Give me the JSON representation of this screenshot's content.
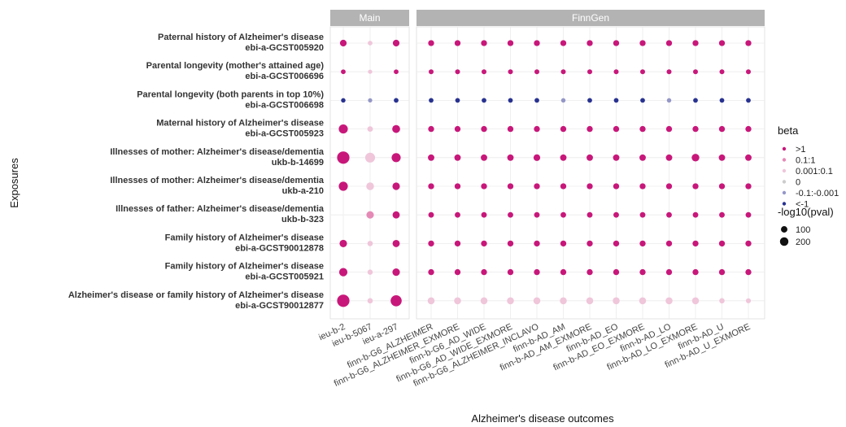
{
  "chart_data": {
    "type": "scatter",
    "title": "",
    "xlabel": "Alzheimer's disease outcomes",
    "ylabel": "Exposures",
    "panels": [
      {
        "name": "Main",
        "outcomes": [
          "ieu-b-2",
          "ieu-b-5067",
          "ieu-a-297"
        ]
      },
      {
        "name": "FinnGen",
        "outcomes": [
          "finn-b-G6_ALZHEIMER",
          "finn-b-G6_ALZHEIMER_EXMORE",
          "finn-b-G6_AD_WIDE",
          "finn-b-G6_AD_WIDE_EXMORE",
          "finn-b-G6_ALZHEIMER_INCLAVO",
          "finn-b-AD_AM",
          "finn-b-AD_AM_EXMORE",
          "finn-b-AD_EO",
          "finn-b-AD_EO_EXMORE",
          "finn-b-AD_LO",
          "finn-b-AD_LO_EXMORE",
          "finn-b-AD_U",
          "finn-b-AD_U_EXMORE"
        ]
      }
    ],
    "exposures": [
      {
        "name": "Paternal history of Alzheimer's disease",
        "id": "ebi-a-GCST005920"
      },
      {
        "name": "Parental longevity (mother's attained age)",
        "id": "ebi-a-GCST006696"
      },
      {
        "name": "Parental longevity (both parents in top 10%)",
        "id": "ebi-a-GCST006698"
      },
      {
        "name": "Maternal history of Alzheimer's disease",
        "id": "ebi-a-GCST005923"
      },
      {
        "name": "Illnesses of mother: Alzheimer's disease/dementia",
        "id": "ukb-b-14699"
      },
      {
        "name": "Illnesses of mother: Alzheimer's disease/dementia",
        "id": "ukb-a-210"
      },
      {
        "name": "Illnesses of father: Alzheimer's disease/dementia",
        "id": "ukb-b-323"
      },
      {
        "name": "Family history of Alzheimer's disease",
        "id": "ebi-a-GCST90012878"
      },
      {
        "name": "Family history of Alzheimer's disease",
        "id": "ebi-a-GCST005921"
      },
      {
        "name": "Alzheimer's disease or family history of Alzheimer's disease",
        "id": "ebi-a-GCST90012877"
      }
    ],
    "beta_categories": [
      ">1",
      "0.1:1",
      "0.001:0.1",
      "0",
      "-0.1:-0.001",
      "<-1"
    ],
    "colors": {
      ">1": "#c8177a",
      "0.1:1": "#e58ab6",
      "0.001:0.1": "#efc6da",
      "0": "#cccccc",
      "-0.1:-0.001": "#9497c7",
      "<-1": "#283290"
    },
    "size_legend": {
      "title": "-log10(pval)",
      "values": [
        100,
        200
      ]
    },
    "color_legend_title": "beta",
    "main_points": [
      [
        {
          "beta": ">1",
          "logp": 40
        },
        {
          "beta": "0.001:0.1",
          "logp": 12
        },
        {
          "beta": ">1",
          "logp": 40
        }
      ],
      [
        {
          "beta": ">1",
          "logp": 12
        },
        {
          "beta": "0.001:0.1",
          "logp": 8
        },
        {
          "beta": ">1",
          "logp": 12
        }
      ],
      [
        {
          "beta": "<-1",
          "logp": 10
        },
        {
          "beta": "-0.1:-0.001",
          "logp": 8
        },
        {
          "beta": "<-1",
          "logp": 12
        }
      ],
      [
        {
          "beta": ">1",
          "logp": 95
        },
        {
          "beta": "0.001:0.1",
          "logp": 22
        },
        {
          "beta": ">1",
          "logp": 65
        }
      ],
      [
        {
          "beta": ">1",
          "logp": 210
        },
        {
          "beta": "0.001:0.1",
          "logp": 120
        },
        {
          "beta": ">1",
          "logp": 95
        }
      ],
      [
        {
          "beta": ">1",
          "logp": 95
        },
        {
          "beta": "0.001:0.1",
          "logp": 60
        },
        {
          "beta": ">1",
          "logp": 55
        }
      ],
      [
        null,
        {
          "beta": "0.1:1",
          "logp": 55
        },
        {
          "beta": ">1",
          "logp": 50
        }
      ],
      [
        {
          "beta": ">1",
          "logp": 55
        },
        {
          "beta": "0.001:0.1",
          "logp": 20
        },
        {
          "beta": ">1",
          "logp": 50
        }
      ],
      [
        {
          "beta": ">1",
          "logp": 75
        },
        {
          "beta": "0.001:0.1",
          "logp": 18
        },
        {
          "beta": ">1",
          "logp": 55
        }
      ],
      [
        {
          "beta": ">1",
          "logp": 210
        },
        {
          "beta": "0.001:0.1",
          "logp": 20
        },
        {
          "beta": ">1",
          "logp": 160
        }
      ]
    ],
    "finngen_points": [
      {
        "beta": ">1",
        "logp": 28
      },
      {
        "beta": ">1",
        "logp": 14
      },
      {
        "beta": "<-1",
        "logp": 12
      },
      {
        "beta": ">1",
        "logp": 28
      },
      {
        "beta": ">1",
        "logp": 35
      },
      {
        "beta": ">1",
        "logp": 28
      },
      {
        "beta": ">1",
        "logp": 22
      },
      {
        "beta": ">1",
        "logp": 28
      },
      {
        "beta": ">1",
        "logp": 28
      },
      {
        "beta": "0.001:0.1",
        "logp": 45
      }
    ],
    "finngen_overrides": [
      {
        "row": 2,
        "col": 5,
        "beta": "-0.1:-0.001",
        "logp": 10
      },
      {
        "row": 2,
        "col": 9,
        "beta": "-0.1:-0.001",
        "logp": 10
      },
      {
        "row": 4,
        "col": 10,
        "beta": ">1",
        "logp": 60
      },
      {
        "row": 4,
        "col": 4,
        "beta": ">1",
        "logp": 40
      },
      {
        "row": 9,
        "col": 11,
        "beta": "0.001:0.1",
        "logp": 20
      },
      {
        "row": 9,
        "col": 12,
        "beta": "0.001:0.1",
        "logp": 15
      }
    ]
  }
}
